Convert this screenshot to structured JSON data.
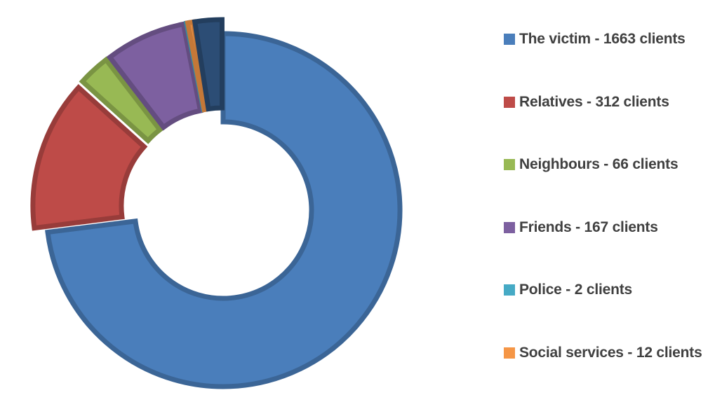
{
  "chart_data": {
    "type": "pie",
    "variant": "exploded-doughnut",
    "series": [
      {
        "label": "The victim - 1663 clients",
        "value": 1663,
        "color": "#4A7EBB"
      },
      {
        "label": "Relatives - 312 clients",
        "value": 312,
        "color": "#BE4B48"
      },
      {
        "label": "Neighbours - 66 clients",
        "value": 66,
        "color": "#98B954"
      },
      {
        "label": "Friends - 167 clients",
        "value": 167,
        "color": "#7D60A0"
      },
      {
        "label": "Police - 2 clients",
        "value": 2,
        "color": "#46AAC5"
      },
      {
        "label": "Social services - 12 clients",
        "value": 12,
        "color": "#F59646"
      },
      {
        "value": 56,
        "color": "#2C4D75",
        "legend": false
      }
    ],
    "legend_position": "right"
  }
}
